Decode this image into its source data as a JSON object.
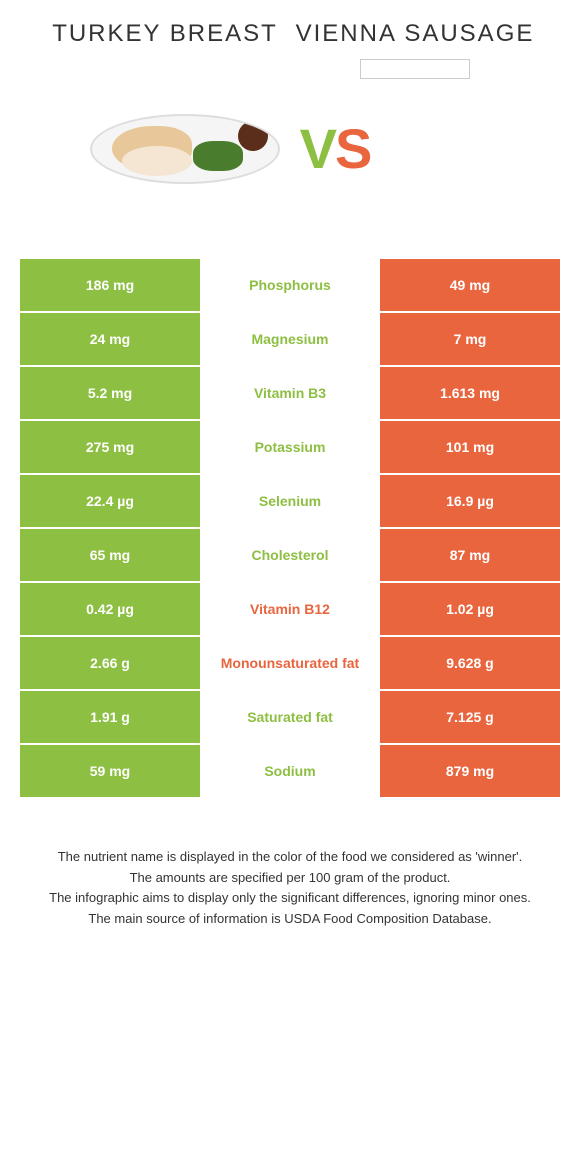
{
  "header": {
    "left_title": "TURKEY BREAST",
    "right_title": "VIENNA SAUSAGE"
  },
  "vs": {
    "v": "V",
    "s": "S"
  },
  "colors": {
    "green": "#8dbf42",
    "orange": "#e8653e",
    "green_text": "#8dbf42",
    "orange_text": "#e8653e"
  },
  "rows": [
    {
      "left": "186 mg",
      "label": "Phosphorus",
      "right": "49 mg",
      "winner": "left"
    },
    {
      "left": "24 mg",
      "label": "Magnesium",
      "right": "7 mg",
      "winner": "left"
    },
    {
      "left": "5.2 mg",
      "label": "Vitamin B3",
      "right": "1.613 mg",
      "winner": "left"
    },
    {
      "left": "275 mg",
      "label": "Potassium",
      "right": "101 mg",
      "winner": "left"
    },
    {
      "left": "22.4 µg",
      "label": "Selenium",
      "right": "16.9 µg",
      "winner": "left"
    },
    {
      "left": "65 mg",
      "label": "Cholesterol",
      "right": "87 mg",
      "winner": "left"
    },
    {
      "left": "0.42 µg",
      "label": "Vitamin B12",
      "right": "1.02 µg",
      "winner": "right"
    },
    {
      "left": "2.66 g",
      "label": "Monounsaturated fat",
      "right": "9.628 g",
      "winner": "right"
    },
    {
      "left": "1.91 g",
      "label": "Saturated fat",
      "right": "7.125 g",
      "winner": "left"
    },
    {
      "left": "59 mg",
      "label": "Sodium",
      "right": "879 mg",
      "winner": "left"
    }
  ],
  "footer": {
    "line1": "The nutrient name is displayed in the color of the food we considered as 'winner'.",
    "line2": "The amounts are specified per 100 gram of the product.",
    "line3": "The infographic aims to display only the significant differences, ignoring minor ones.",
    "line4": "The main source of information is USDA Food Composition Database."
  }
}
